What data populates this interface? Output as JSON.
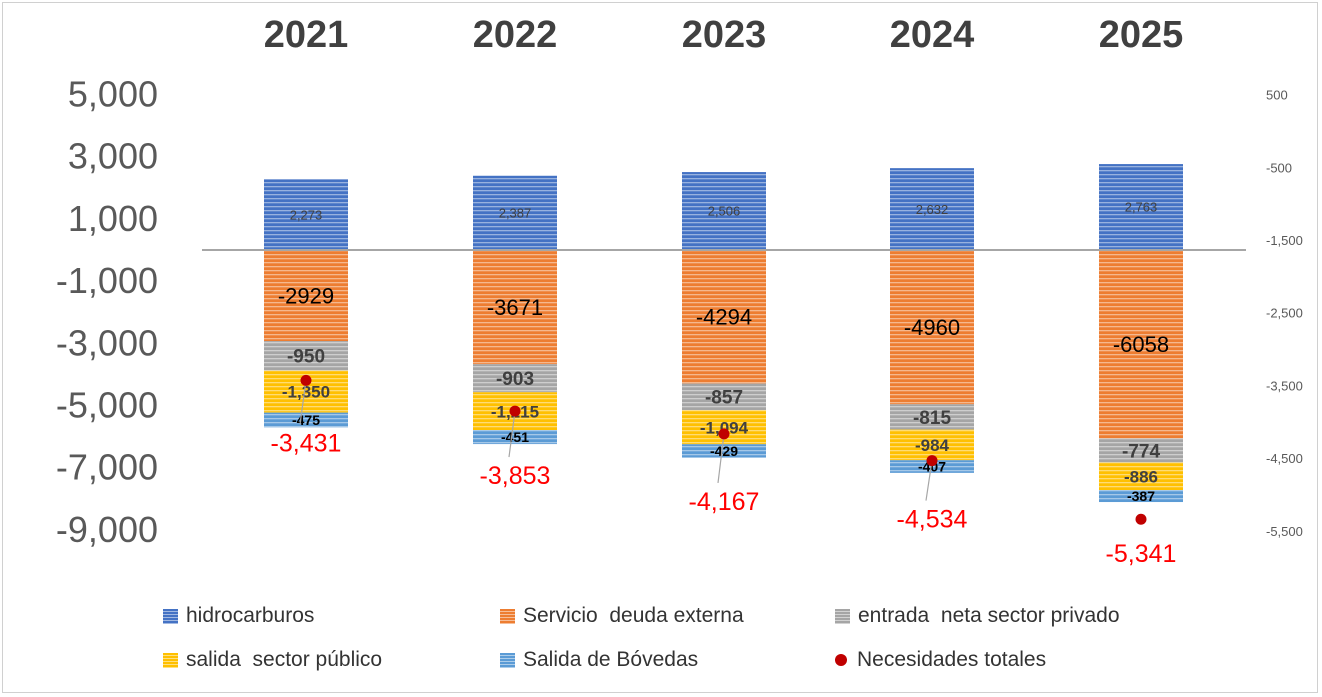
{
  "chart_data": {
    "type": "bar",
    "stacked": true,
    "categories": [
      "2021",
      "2022",
      "2023",
      "2024",
      "2025"
    ],
    "series": [
      {
        "name": "hidrocarburos",
        "values": [
          2273,
          2387,
          2506,
          2632,
          2763
        ],
        "labels": [
          "2,273",
          "2,387",
          "2,506",
          "2,632",
          "2,763"
        ],
        "color": "#4472c4"
      },
      {
        "name": "Servicio  deuda externa",
        "values": [
          -2929,
          -3671,
          -4294,
          -4960,
          -6058
        ],
        "labels": [
          "-2929",
          "-3671",
          "-4294",
          "-4960",
          "-6058"
        ],
        "color": "#ed7d31"
      },
      {
        "name": "entrada  neta sector privado",
        "values": [
          -950,
          -903,
          -857,
          -815,
          -774
        ],
        "labels": [
          "-950",
          "-903",
          "-857",
          "-815",
          "-774"
        ],
        "color": "#a5a5a5"
      },
      {
        "name": "salida  sector público",
        "values": [
          -1350,
          -1215,
          -1094,
          -984,
          -886
        ],
        "labels": [
          "-1,350",
          "-1,215",
          "-1,094",
          "-984",
          "-886"
        ],
        "color": "#ffc000"
      },
      {
        "name": "Salida de Bóvedas",
        "values": [
          -475,
          -451,
          -429,
          -407,
          -387
        ],
        "labels": [
          "-475",
          "-451",
          "-429",
          "-407",
          "-387"
        ],
        "color": "#5b9bd5"
      }
    ],
    "line_series": {
      "name": "Necesidades totales",
      "type": "scatter",
      "axis": "secondary",
      "values": [
        -3431,
        -3853,
        -4167,
        -4534,
        -5341
      ],
      "labels": [
        "-3,431",
        "-3,853",
        "-4,167",
        "-4,534",
        "-5,341"
      ],
      "color": "#c00000"
    },
    "y_axis": {
      "ticks": [
        "5,000",
        "3,000",
        "1,000",
        "-1,000",
        "-3,000",
        "-5,000",
        "-7,000",
        "-9,000"
      ],
      "tick_values": [
        5000,
        3000,
        1000,
        -1000,
        -3000,
        -5000,
        -7000,
        -9000
      ]
    },
    "y2_axis": {
      "ticks": [
        "500",
        "-500",
        "-1,500",
        "-2,500",
        "-3,500",
        "-4,500",
        "-5,500"
      ],
      "tick_values": [
        500,
        -500,
        -1500,
        -2500,
        -3500,
        -4500,
        -5500
      ]
    },
    "legend_position": "bottom",
    "title": "",
    "xlabel": "",
    "ylabel": ""
  }
}
